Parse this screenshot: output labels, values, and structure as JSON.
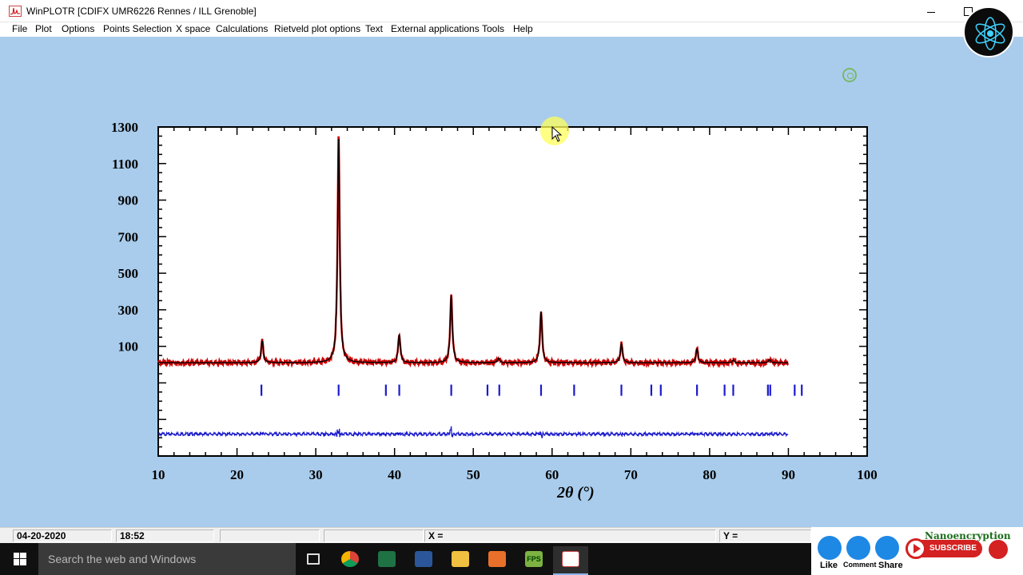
{
  "window": {
    "title": "WinPLOTR [CDIFX UMR6226 Rennes / ILL Grenoble]"
  },
  "menu": [
    {
      "label": "File"
    },
    {
      "label": "Plot"
    },
    {
      "label": "Options"
    },
    {
      "label": "Points Selection"
    },
    {
      "label": "X space"
    },
    {
      "label": "Calculations"
    },
    {
      "label": "Rietveld plot options"
    },
    {
      "label": "Text"
    },
    {
      "label": "External applications"
    },
    {
      "label": "Tools"
    },
    {
      "label": "Help"
    }
  ],
  "status": {
    "date": "04-20-2020",
    "time": "18:52",
    "x_readout": "X =",
    "y_readout": "Y ="
  },
  "taskbar": {
    "search_placeholder": "Search the web and Windows",
    "apps": [
      "task-view-icon",
      "chrome-icon",
      "excel-icon",
      "word-icon",
      "file-explorer-icon",
      "origin-icon",
      "fps-toolbar-icon",
      "winplotr-icon"
    ],
    "fps_label": "FPS"
  },
  "overlay": {
    "brand": "Nanoencryption",
    "like": "Like",
    "comment": "Comment",
    "share": "Share",
    "subscribe": "SUBSCRIBE"
  },
  "chart_data": {
    "type": "line",
    "xlabel": "2θ (°)",
    "ylabel": "",
    "xlim": [
      10,
      100
    ],
    "ylim": [
      -500,
      1300
    ],
    "x_ticks": [
      10,
      20,
      30,
      40,
      50,
      60,
      70,
      80,
      90,
      100
    ],
    "y_ticks": [
      100,
      300,
      500,
      700,
      900,
      1100,
      1300
    ],
    "colors": {
      "observed": "#cc0000",
      "calculated": "#000000",
      "difference": "#1a1acc",
      "bragg": "#1a1acc"
    },
    "background_level": 10,
    "peaks": [
      {
        "x": 23.2,
        "y": 130
      },
      {
        "x": 32.9,
        "y": 1250
      },
      {
        "x": 40.6,
        "y": 165
      },
      {
        "x": 47.2,
        "y": 380
      },
      {
        "x": 53.2,
        "y": 35
      },
      {
        "x": 58.6,
        "y": 290
      },
      {
        "x": 68.8,
        "y": 115
      },
      {
        "x": 78.4,
        "y": 85
      },
      {
        "x": 83.0,
        "y": 25
      },
      {
        "x": 87.6,
        "y": 28
      }
    ],
    "bragg_positions": [
      23.1,
      32.9,
      38.9,
      40.6,
      47.2,
      51.8,
      53.3,
      58.6,
      62.8,
      68.8,
      72.6,
      73.8,
      78.4,
      81.9,
      83.0,
      87.4,
      87.7,
      90.8,
      91.7
    ],
    "bragg_level": -140,
    "difference_offset": -380
  }
}
